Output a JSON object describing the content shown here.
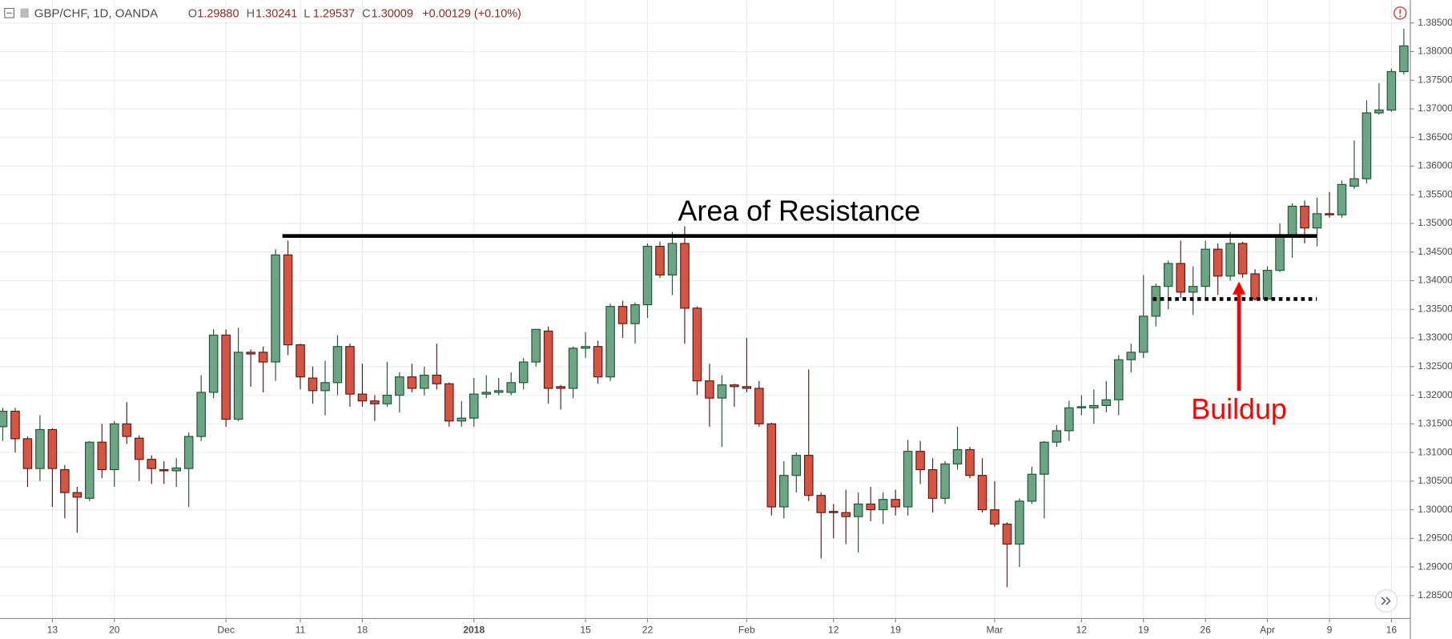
{
  "chart_data": {
    "type": "candlestick",
    "header": {
      "symbol": "GBP/CHF, 1D, OANDA",
      "ohlc": [
        {
          "label": "O",
          "value": "1.29880"
        },
        {
          "label": "H",
          "value": "1.30241"
        },
        {
          "label": "L",
          "value": "1.29537"
        },
        {
          "label": "C",
          "value": "1.30009"
        }
      ],
      "change": "+0.00129 (+0.10%)"
    },
    "categories": [
      null,
      null,
      null,
      null,
      "13",
      null,
      null,
      null,
      null,
      "20",
      null,
      null,
      null,
      null,
      null,
      null,
      null,
      null,
      "Dec",
      null,
      null,
      null,
      null,
      null,
      "11",
      null,
      null,
      null,
      null,
      "18",
      null,
      null,
      null,
      null,
      null,
      null,
      null,
      null,
      "2018",
      null,
      null,
      null,
      null,
      null,
      null,
      null,
      null,
      "15",
      null,
      null,
      null,
      null,
      "22",
      null,
      null,
      null,
      null,
      null,
      null,
      null,
      "Feb",
      null,
      null,
      null,
      null,
      null,
      null,
      "12",
      null,
      null,
      null,
      null,
      "19",
      null,
      null,
      null,
      null,
      null,
      null,
      null,
      "Mar",
      null,
      null,
      null,
      null,
      null,
      null,
      "12",
      null,
      null,
      null,
      null,
      "19",
      null,
      null,
      null,
      null,
      "26",
      null,
      null,
      null,
      null,
      "Apr",
      null,
      null,
      null,
      null,
      "9",
      null,
      null,
      null,
      null,
      "16",
      null
    ],
    "open": [
      1.3145,
      1.3172,
      1.3124,
      1.3072,
      1.314,
      1.307,
      1.303,
      1.302,
      1.3118,
      1.307,
      1.315,
      1.3125,
      1.3088,
      1.307,
      1.3068,
      1.3072,
      1.3128,
      1.3205,
      1.3305,
      1.3158,
      1.3275,
      1.3275,
      1.3258,
      1.3445,
      1.3288,
      1.323,
      1.3208,
      1.3222,
      1.3285,
      1.3202,
      1.319,
      1.3185,
      1.32,
      1.3232,
      1.3212,
      1.3235,
      1.322,
      1.3155,
      1.316,
      1.3202,
      1.3205,
      1.3205,
      1.3222,
      1.3258,
      1.3312,
      1.3215,
      1.3212,
      1.3282,
      1.3285,
      1.3232,
      1.3355,
      1.3325,
      1.3358,
      1.346,
      1.341,
      1.3465,
      1.3352,
      1.3225,
      1.3195,
      1.3218,
      1.3215,
      1.3212,
      1.315,
      1.3005,
      1.306,
      1.3095,
      1.3025,
      1.2997,
      1.2995,
      1.2988,
      1.301,
      1.3,
      1.3018,
      1.3005,
      1.3102,
      1.307,
      1.302,
      1.308,
      1.3105,
      1.306,
      1.3,
      1.2975,
      1.294,
      1.3015,
      1.3062,
      1.3118,
      1.3138,
      1.3178,
      1.3178,
      1.3182,
      1.3192,
      1.3262,
      1.3275,
      1.3338,
      1.339,
      1.343,
      1.338,
      1.339,
      1.3455,
      1.3408,
      1.3465,
      1.3412,
      1.3368,
      1.3418,
      1.348,
      1.353,
      1.3492,
      1.3517,
      1.3515,
      1.3565,
      1.3578,
      1.3693,
      1.3698,
      1.3765
    ],
    "high": [
      1.3178,
      1.3178,
      1.3128,
      1.3165,
      1.3142,
      1.3078,
      1.304,
      1.312,
      1.315,
      1.3155,
      1.3188,
      1.313,
      1.3095,
      1.3085,
      1.309,
      1.3135,
      1.3235,
      1.3315,
      1.3315,
      1.3318,
      1.328,
      1.3285,
      1.3455,
      1.347,
      1.329,
      1.325,
      1.326,
      1.3305,
      1.329,
      1.3255,
      1.32,
      1.3258,
      1.324,
      1.3255,
      1.325,
      1.329,
      1.3222,
      1.319,
      1.323,
      1.3235,
      1.323,
      1.324,
      1.3265,
      1.3315,
      1.332,
      1.3218,
      1.3285,
      1.331,
      1.3295,
      1.336,
      1.3365,
      1.3362,
      1.3465,
      1.3468,
      1.3485,
      1.3495,
      1.3355,
      1.3255,
      1.3235,
      1.322,
      1.33,
      1.3225,
      1.3152,
      1.3085,
      1.31,
      1.3245,
      1.303,
      1.301,
      1.3035,
      1.303,
      1.304,
      1.303,
      1.3035,
      1.3122,
      1.312,
      1.309,
      1.3085,
      1.3145,
      1.311,
      1.309,
      1.305,
      1.2978,
      1.302,
      1.3075,
      1.312,
      1.3148,
      1.319,
      1.32,
      1.321,
      1.3225,
      1.327,
      1.329,
      1.341,
      1.3395,
      1.3435,
      1.347,
      1.3425,
      1.347,
      1.3465,
      1.3485,
      1.3468,
      1.342,
      1.3425,
      1.35,
      1.3535,
      1.354,
      1.3545,
      1.3555,
      1.3575,
      1.3645,
      1.3715,
      1.3745,
      1.377,
      1.384
    ],
    "low": [
      1.312,
      1.31,
      1.304,
      1.305,
      1.3005,
      1.2985,
      1.296,
      1.3015,
      1.3055,
      1.304,
      1.3115,
      1.305,
      1.3045,
      1.3045,
      1.304,
      1.3005,
      1.312,
      1.3195,
      1.3145,
      1.3155,
      1.3215,
      1.3205,
      1.3225,
      1.327,
      1.321,
      1.3185,
      1.3165,
      1.32,
      1.318,
      1.318,
      1.3155,
      1.318,
      1.317,
      1.3205,
      1.32,
      1.321,
      1.3145,
      1.3145,
      1.3145,
      1.3195,
      1.32,
      1.32,
      1.321,
      1.325,
      1.3185,
      1.3175,
      1.3195,
      1.3265,
      1.322,
      1.3225,
      1.33,
      1.329,
      1.3335,
      1.3405,
      1.3375,
      1.329,
      1.32,
      1.3145,
      1.311,
      1.318,
      1.3205,
      1.3145,
      1.299,
      1.2985,
      1.303,
      1.3015,
      1.2915,
      1.295,
      1.294,
      1.2925,
      1.298,
      1.2975,
      1.299,
      1.299,
      1.3045,
      1.2995,
      1.301,
      1.307,
      1.3055,
      1.2995,
      1.297,
      1.2865,
      1.29,
      1.301,
      1.2985,
      1.311,
      1.312,
      1.3165,
      1.315,
      1.317,
      1.3165,
      1.324,
      1.3265,
      1.332,
      1.335,
      1.337,
      1.334,
      1.337,
      1.3375,
      1.34,
      1.3405,
      1.3365,
      1.3365,
      1.3415,
      1.344,
      1.3465,
      1.346,
      1.351,
      1.351,
      1.356,
      1.357,
      1.369,
      1.3695,
      1.376
    ],
    "close": [
      1.3172,
      1.3124,
      1.3072,
      1.314,
      1.3072,
      1.303,
      1.3022,
      1.3118,
      1.307,
      1.315,
      1.3128,
      1.3088,
      1.3072,
      1.3068,
      1.3073,
      1.3128,
      1.3205,
      1.3305,
      1.3158,
      1.3275,
      1.3272,
      1.3258,
      1.3445,
      1.3288,
      1.3232,
      1.3208,
      1.3222,
      1.3285,
      1.3202,
      1.319,
      1.3185,
      1.32,
      1.3232,
      1.3212,
      1.3235,
      1.322,
      1.3155,
      1.316,
      1.3202,
      1.3205,
      1.3208,
      1.3222,
      1.3258,
      1.3315,
      1.3212,
      1.3212,
      1.3282,
      1.3285,
      1.3232,
      1.3355,
      1.3325,
      1.3358,
      1.346,
      1.341,
      1.3465,
      1.3352,
      1.3225,
      1.3195,
      1.3218,
      1.3215,
      1.3212,
      1.315,
      1.3005,
      1.306,
      1.3095,
      1.3025,
      1.2995,
      1.2995,
      1.2988,
      1.301,
      1.3,
      1.3018,
      1.3005,
      1.3102,
      1.307,
      1.302,
      1.308,
      1.3105,
      1.306,
      1.3,
      1.2975,
      1.294,
      1.3015,
      1.3062,
      1.3118,
      1.3138,
      1.3178,
      1.318,
      1.3182,
      1.3192,
      1.3262,
      1.3275,
      1.3338,
      1.339,
      1.343,
      1.338,
      1.339,
      1.3455,
      1.3408,
      1.3465,
      1.3412,
      1.3368,
      1.3418,
      1.348,
      1.353,
      1.3492,
      1.3517,
      1.3515,
      1.3568,
      1.3578,
      1.3693,
      1.3698,
      1.3765,
      1.381
    ],
    "up_color": "#6ba583",
    "up_border": "#225437",
    "down_color": "#d75442",
    "down_border": "#5b1a13",
    "ylim": [
      1.281,
      1.389
    ],
    "yticks": [
      {
        "value": 1.285,
        "label": "1.28500"
      },
      {
        "value": 1.29,
        "label": "1.29000"
      },
      {
        "value": 1.295,
        "label": "1.29500"
      },
      {
        "value": 1.3,
        "label": "1.30000"
      },
      {
        "value": 1.305,
        "label": "1.30500"
      },
      {
        "value": 1.31,
        "label": "1.31000"
      },
      {
        "value": 1.315,
        "label": "1.31500"
      },
      {
        "value": 1.32,
        "label": "1.32000"
      },
      {
        "value": 1.325,
        "label": "1.32500"
      },
      {
        "value": 1.33,
        "label": "1.33000"
      },
      {
        "value": 1.335,
        "label": "1.33500"
      },
      {
        "value": 1.34,
        "label": "1.34000"
      },
      {
        "value": 1.345,
        "label": "1.34500"
      },
      {
        "value": 1.35,
        "label": "1.35000"
      },
      {
        "value": 1.355,
        "label": "1.35500"
      },
      {
        "value": 1.36,
        "label": "1.36000"
      },
      {
        "value": 1.365,
        "label": "1.36500"
      },
      {
        "value": 1.37,
        "label": "1.37000"
      },
      {
        "value": 1.375,
        "label": "1.37500"
      },
      {
        "value": 1.38,
        "label": "1.38000"
      },
      {
        "value": 1.385,
        "label": "1.38500"
      }
    ],
    "grid": true,
    "annotations": [
      {
        "text": "Area of Resistance",
        "level": 1.3478,
        "color": "#000000",
        "style": "solid"
      },
      {
        "text": "Buildup",
        "level": 1.3368,
        "color": "#ff0000",
        "style": "dotted"
      }
    ]
  }
}
